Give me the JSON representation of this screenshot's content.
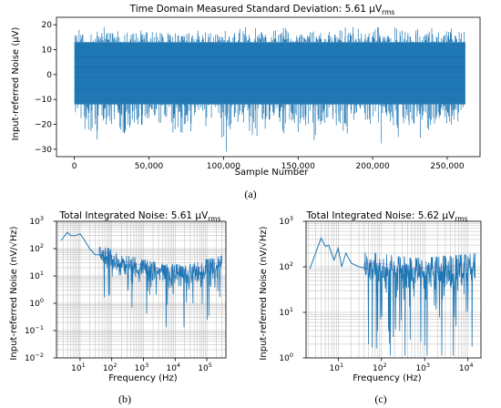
{
  "chart_data": [
    {
      "id": "a",
      "type": "line",
      "panel_label": "(a)",
      "title": "Time Domain Measured Standard Deviation: 5.61 μV",
      "title_sub": "rms",
      "xlabel": "Sample Number",
      "ylabel": "Input-referred Noise (μV)",
      "xlim": [
        -12000,
        272000
      ],
      "ylim": [
        -33,
        23
      ],
      "xticks": [
        0,
        50000,
        100000,
        150000,
        200000,
        250000
      ],
      "xtick_labels": [
        "0",
        "50,000",
        "100,000",
        "150,000",
        "200,000",
        "250,000"
      ],
      "yticks": [
        -30,
        -20,
        -10,
        0,
        10,
        20
      ],
      "ytick_labels": [
        "−30",
        "−20",
        "−10",
        "0",
        "10",
        "20"
      ],
      "grid": false,
      "series": [
        {
          "color": "#1f77b4",
          "x_range": [
            0,
            262144
          ],
          "dense_band": [
            -12,
            13
          ],
          "extremes": [
            -31,
            19
          ]
        }
      ]
    },
    {
      "id": "b",
      "type": "line",
      "panel_label": "(b)",
      "title": "Total Integrated Noise: 5.61 μV",
      "title_sub": "rms",
      "xlabel": "Frequency (Hz)",
      "ylabel": "Input-referred Noise (nV/√Hz)",
      "xscale": "log",
      "yscale": "log",
      "xlim": [
        1.8,
        400000
      ],
      "ylim": [
        0.01,
        1000
      ],
      "xtick_labels": [
        "10",
        "10",
        "10",
        "10",
        "10"
      ],
      "xtick_exps": [
        "1",
        "2",
        "3",
        "4",
        "5"
      ],
      "xticks": [
        10,
        100,
        1000,
        10000,
        100000
      ],
      "yticks": [
        0.01,
        0.1,
        1,
        10,
        100,
        1000
      ],
      "ytick_labels": [
        "10",
        "10",
        "10",
        "10",
        "10",
        "10"
      ],
      "ytick_exps": [
        "−2",
        "−1",
        "0",
        "1",
        "2",
        "3"
      ],
      "grid": true,
      "series": [
        {
          "color": "#1f77b4",
          "x": [
            2.5,
            4,
            5,
            7,
            10,
            14,
            20,
            30,
            50,
            80,
            100,
            200,
            300,
            500,
            1000,
            2000,
            3000,
            5000,
            10000,
            30000,
            100000,
            300000
          ],
          "y": [
            200,
            400,
            300,
            300,
            350,
            200,
            100,
            60,
            60,
            50,
            40,
            25,
            25,
            22,
            18,
            15,
            14,
            12,
            12,
            12,
            18,
            25
          ]
        }
      ]
    },
    {
      "id": "c",
      "type": "line",
      "panel_label": "(c)",
      "title": "Total Integrated Noise: 5.62 μV",
      "title_sub": "rms",
      "xlabel": "Frequency (Hz)",
      "ylabel": "Input-referred Noise (nV/√Hz)",
      "xscale": "log",
      "yscale": "log",
      "xlim": [
        1.8,
        20000
      ],
      "ylim": [
        1,
        1000
      ],
      "xticks": [
        10,
        100,
        1000,
        10000
      ],
      "xtick_labels": [
        "10",
        "10",
        "10",
        "10"
      ],
      "xtick_exps": [
        "1",
        "2",
        "3",
        "4"
      ],
      "yticks": [
        1,
        10,
        100,
        1000
      ],
      "ytick_labels": [
        "10",
        "10",
        "10",
        "10"
      ],
      "ytick_exps": [
        "0",
        "1",
        "2",
        "3"
      ],
      "grid": true,
      "series": [
        {
          "color": "#1f77b4",
          "x": [
            2.2,
            3,
            4,
            5,
            6,
            8,
            10,
            12,
            15,
            20,
            30,
            50,
            100,
            200,
            500,
            1000,
            2000,
            5000,
            10000,
            15000
          ],
          "y": [
            90,
            200,
            430,
            280,
            300,
            140,
            260,
            100,
            200,
            120,
            100,
            90,
            90,
            80,
            70,
            70,
            75,
            80,
            85,
            90
          ]
        }
      ]
    }
  ]
}
